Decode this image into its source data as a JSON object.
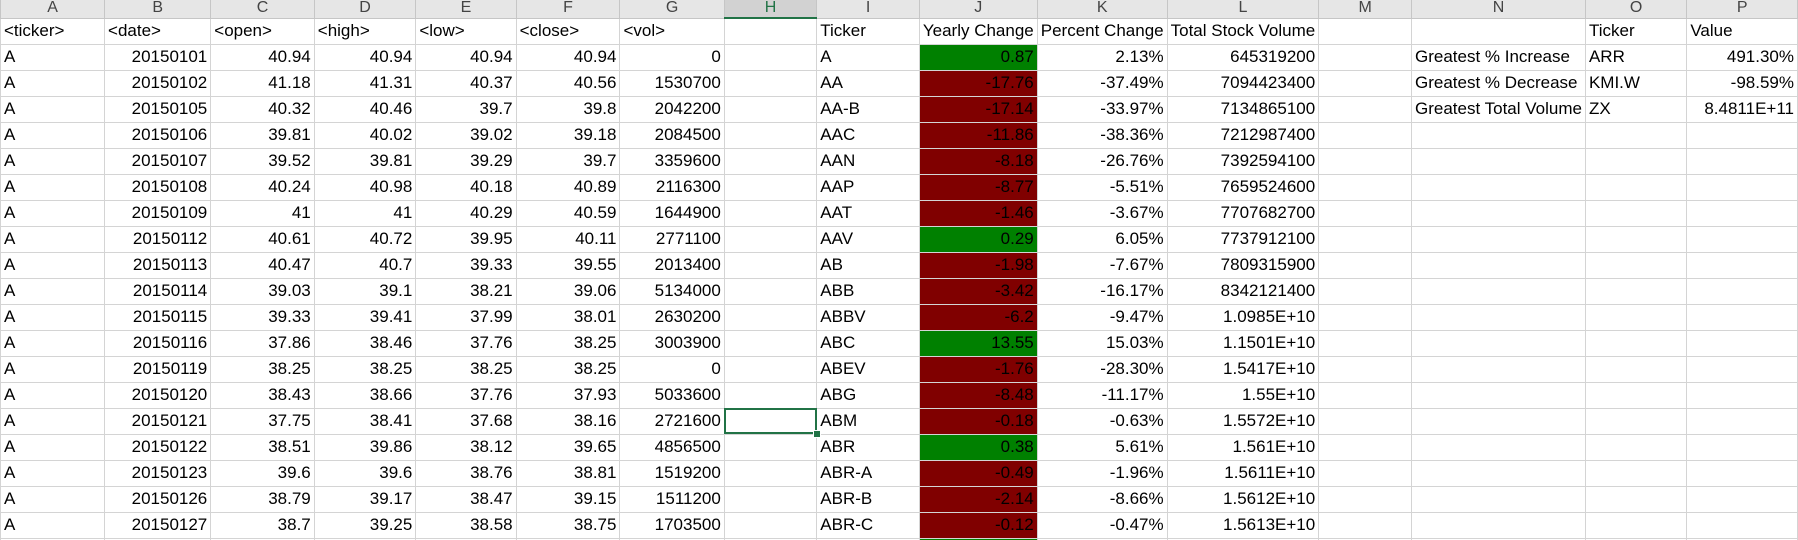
{
  "column_headers": [
    "A",
    "B",
    "C",
    "D",
    "E",
    "F",
    "G",
    "H",
    "I",
    "J",
    "K",
    "L",
    "M",
    "N",
    "O",
    "P"
  ],
  "active_column": "H",
  "colors": {
    "positive_fill": "#008000",
    "negative_fill": "#800000",
    "selection": "#217346"
  },
  "selected_cell": "H16",
  "header_row": {
    "ticker": "<ticker>",
    "date": "<date>",
    "open": "<open>",
    "high": "<high>",
    "low": "<low>",
    "close": "<close>",
    "vol": "<vol>",
    "summary_ticker": "Ticker",
    "yearly_change": "Yearly Change",
    "percent_change": "Percent Change",
    "total_volume": "Total Stock Volume",
    "stat_ticker": "Ticker",
    "stat_value": "Value"
  },
  "raw_rows": [
    [
      "A",
      "20150101",
      "40.94",
      "40.94",
      "40.94",
      "40.94",
      "0"
    ],
    [
      "A",
      "20150102",
      "41.18",
      "41.31",
      "40.37",
      "40.56",
      "1530700"
    ],
    [
      "A",
      "20150105",
      "40.32",
      "40.46",
      "39.7",
      "39.8",
      "2042200"
    ],
    [
      "A",
      "20150106",
      "39.81",
      "40.02",
      "39.02",
      "39.18",
      "2084500"
    ],
    [
      "A",
      "20150107",
      "39.52",
      "39.81",
      "39.29",
      "39.7",
      "3359600"
    ],
    [
      "A",
      "20150108",
      "40.24",
      "40.98",
      "40.18",
      "40.89",
      "2116300"
    ],
    [
      "A",
      "20150109",
      "41",
      "41",
      "40.29",
      "40.59",
      "1644900"
    ],
    [
      "A",
      "20150112",
      "40.61",
      "40.72",
      "39.95",
      "40.11",
      "2771100"
    ],
    [
      "A",
      "20150113",
      "40.47",
      "40.7",
      "39.33",
      "39.55",
      "2013400"
    ],
    [
      "A",
      "20150114",
      "39.03",
      "39.1",
      "38.21",
      "39.06",
      "5134000"
    ],
    [
      "A",
      "20150115",
      "39.33",
      "39.41",
      "37.99",
      "38.01",
      "2630200"
    ],
    [
      "A",
      "20150116",
      "37.86",
      "38.46",
      "37.76",
      "38.25",
      "3003900"
    ],
    [
      "A",
      "20150119",
      "38.25",
      "38.25",
      "38.25",
      "38.25",
      "0"
    ],
    [
      "A",
      "20150120",
      "38.43",
      "38.66",
      "37.76",
      "37.93",
      "5033600"
    ],
    [
      "A",
      "20150121",
      "37.75",
      "38.41",
      "37.68",
      "38.16",
      "2721600"
    ],
    [
      "A",
      "20150122",
      "38.51",
      "39.86",
      "38.12",
      "39.65",
      "4856500"
    ],
    [
      "A",
      "20150123",
      "39.6",
      "39.6",
      "38.76",
      "38.81",
      "1519200"
    ],
    [
      "A",
      "20150126",
      "38.79",
      "39.17",
      "38.47",
      "39.15",
      "1511200"
    ],
    [
      "A",
      "20150127",
      "38.7",
      "39.25",
      "38.58",
      "38.75",
      "1703500"
    ]
  ],
  "summary_rows": [
    {
      "ticker": "A",
      "yearly_change": "0.87",
      "percent_change": "2.13%",
      "total_volume": "645319200"
    },
    {
      "ticker": "AA",
      "yearly_change": "-17.76",
      "percent_change": "-37.49%",
      "total_volume": "7094423400"
    },
    {
      "ticker": "AA-B",
      "yearly_change": "-17.14",
      "percent_change": "-33.97%",
      "total_volume": "7134865100"
    },
    {
      "ticker": "AAC",
      "yearly_change": "-11.86",
      "percent_change": "-38.36%",
      "total_volume": "7212987400"
    },
    {
      "ticker": "AAN",
      "yearly_change": "-8.18",
      "percent_change": "-26.76%",
      "total_volume": "7392594100"
    },
    {
      "ticker": "AAP",
      "yearly_change": "-8.77",
      "percent_change": "-5.51%",
      "total_volume": "7659524600"
    },
    {
      "ticker": "AAT",
      "yearly_change": "-1.46",
      "percent_change": "-3.67%",
      "total_volume": "7707682700"
    },
    {
      "ticker": "AAV",
      "yearly_change": "0.29",
      "percent_change": "6.05%",
      "total_volume": "7737912100"
    },
    {
      "ticker": "AB",
      "yearly_change": "-1.98",
      "percent_change": "-7.67%",
      "total_volume": "7809315900"
    },
    {
      "ticker": "ABB",
      "yearly_change": "-3.42",
      "percent_change": "-16.17%",
      "total_volume": "8342121400"
    },
    {
      "ticker": "ABBV",
      "yearly_change": "-6.2",
      "percent_change": "-9.47%",
      "total_volume": "1.0985E+10"
    },
    {
      "ticker": "ABC",
      "yearly_change": "13.55",
      "percent_change": "15.03%",
      "total_volume": "1.1501E+10"
    },
    {
      "ticker": "ABEV",
      "yearly_change": "-1.76",
      "percent_change": "-28.30%",
      "total_volume": "1.5417E+10"
    },
    {
      "ticker": "ABG",
      "yearly_change": "-8.48",
      "percent_change": "-11.17%",
      "total_volume": "1.55E+10"
    },
    {
      "ticker": "ABM",
      "yearly_change": "-0.18",
      "percent_change": "-0.63%",
      "total_volume": "1.5572E+10"
    },
    {
      "ticker": "ABR",
      "yearly_change": "0.38",
      "percent_change": "5.61%",
      "total_volume": "1.561E+10"
    },
    {
      "ticker": "ABR-A",
      "yearly_change": "-0.49",
      "percent_change": "-1.96%",
      "total_volume": "1.5611E+10"
    },
    {
      "ticker": "ABR-B",
      "yearly_change": "-2.14",
      "percent_change": "-8.66%",
      "total_volume": "1.5612E+10"
    },
    {
      "ticker": "ABR-C",
      "yearly_change": "-0.12",
      "percent_change": "-0.47%",
      "total_volume": "1.5613E+10"
    }
  ],
  "stats_rows": [
    {
      "label": "Greatest % Increase",
      "ticker": "ARR",
      "value": "491.30%"
    },
    {
      "label": "Greatest % Decrease",
      "ticker": "KMI.W",
      "value": "-98.59%"
    },
    {
      "label": "Greatest Total Volume",
      "ticker": "ZX",
      "value": "8.4811E+11"
    }
  ],
  "row_next_partial": [
    "",
    "",
    "",
    "",
    "",
    "",
    "",
    "",
    "",
    "",
    "",
    "",
    "",
    "",
    "",
    ""
  ]
}
